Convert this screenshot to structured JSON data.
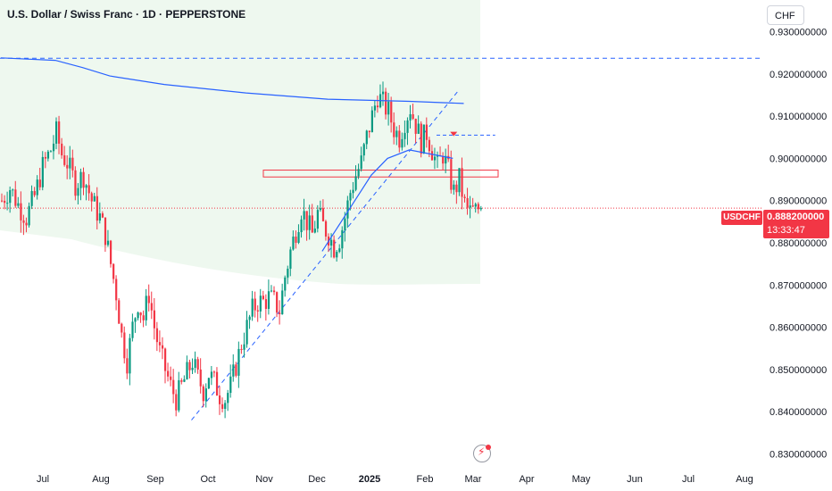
{
  "header": {
    "title": "U.S. Dollar / Swiss Franc · 1D · PEPPERSTONE",
    "currency": "CHF"
  },
  "last_price": {
    "symbol": "USDCHF",
    "price": "0.888200000",
    "countdown": "13:33:47",
    "color": "#f23645"
  },
  "colors": {
    "up": "#089981",
    "down": "#f23645",
    "ma": "#2962ff",
    "band": "#e8f5e9",
    "dashed_line": "#2962ff"
  },
  "icons": {
    "replay": "lightning-icon"
  },
  "chart_data": {
    "type": "candlestick",
    "x_labels": [
      "Jul",
      "Aug",
      "Sep",
      "Oct",
      "Nov",
      "Dec",
      "2025",
      "Feb",
      "Mar",
      "Apr",
      "May",
      "Jun",
      "Jul",
      "Aug"
    ],
    "y_ticks": [
      "0.930000000",
      "0.920000000",
      "0.910000000",
      "0.900000000",
      "0.890000000",
      "0.880000000",
      "0.870000000",
      "0.860000000",
      "0.850000000",
      "0.840000000",
      "0.830000000"
    ],
    "ylim": [
      0.8265,
      0.9375
    ],
    "close_path": [
      [
        0,
        0.89
      ],
      [
        3,
        0.893
      ],
      [
        6,
        0.889
      ],
      [
        9,
        0.886
      ],
      [
        12,
        0.891
      ],
      [
        15,
        0.898
      ],
      [
        18,
        0.902
      ],
      [
        20,
        0.906
      ],
      [
        22,
        0.901
      ],
      [
        24,
        0.899
      ],
      [
        27,
        0.894
      ],
      [
        30,
        0.896
      ],
      [
        33,
        0.89
      ],
      [
        36,
        0.886
      ],
      [
        38,
        0.882
      ],
      [
        40,
        0.875
      ],
      [
        42,
        0.868
      ],
      [
        44,
        0.858
      ],
      [
        46,
        0.852
      ],
      [
        48,
        0.86
      ],
      [
        50,
        0.866
      ],
      [
        52,
        0.862
      ],
      [
        54,
        0.868
      ],
      [
        56,
        0.86
      ],
      [
        58,
        0.854
      ],
      [
        60,
        0.85
      ],
      [
        62,
        0.846
      ],
      [
        64,
        0.843
      ],
      [
        66,
        0.846
      ],
      [
        68,
        0.849
      ],
      [
        70,
        0.852
      ],
      [
        72,
        0.848
      ],
      [
        74,
        0.845
      ],
      [
        76,
        0.849
      ],
      [
        78,
        0.847
      ],
      [
        80,
        0.844
      ],
      [
        82,
        0.843
      ],
      [
        84,
        0.846
      ],
      [
        86,
        0.851
      ],
      [
        88,
        0.856
      ],
      [
        90,
        0.86
      ],
      [
        92,
        0.864
      ],
      [
        94,
        0.866
      ],
      [
        96,
        0.866
      ],
      [
        98,
        0.867
      ],
      [
        100,
        0.866
      ],
      [
        102,
        0.864
      ],
      [
        104,
        0.872
      ],
      [
        106,
        0.878
      ],
      [
        108,
        0.883
      ],
      [
        110,
        0.888
      ],
      [
        112,
        0.885
      ],
      [
        114,
        0.882
      ],
      [
        116,
        0.887
      ],
      [
        118,
        0.884
      ],
      [
        120,
        0.882
      ],
      [
        122,
        0.879
      ],
      [
        124,
        0.881
      ],
      [
        126,
        0.886
      ],
      [
        128,
        0.892
      ],
      [
        130,
        0.896
      ],
      [
        132,
        0.899
      ],
      [
        134,
        0.905
      ],
      [
        136,
        0.91
      ],
      [
        138,
        0.915
      ],
      [
        140,
        0.913
      ],
      [
        142,
        0.911
      ],
      [
        144,
        0.907
      ],
      [
        146,
        0.905
      ],
      [
        148,
        0.909
      ],
      [
        150,
        0.912
      ],
      [
        152,
        0.908
      ],
      [
        154,
        0.904
      ],
      [
        156,
        0.906
      ],
      [
        158,
        0.902
      ],
      [
        160,
        0.898
      ],
      [
        162,
        0.901
      ],
      [
        164,
        0.897
      ],
      [
        166,
        0.892
      ],
      [
        168,
        0.895
      ],
      [
        170,
        0.889
      ]
    ],
    "moving_average_200": [
      [
        0,
        0.9238
      ],
      [
        20,
        0.9232
      ],
      [
        30,
        0.9215
      ],
      [
        40,
        0.9195
      ],
      [
        60,
        0.9175
      ],
      [
        90,
        0.9155
      ],
      [
        120,
        0.914
      ],
      [
        150,
        0.9135
      ],
      [
        170,
        0.913
      ]
    ],
    "moving_average_50": [
      [
        118,
        0.878
      ],
      [
        124,
        0.884
      ],
      [
        130,
        0.89
      ],
      [
        136,
        0.896
      ],
      [
        142,
        0.9
      ],
      [
        150,
        0.902
      ],
      [
        158,
        0.901
      ],
      [
        166,
        0.9
      ]
    ],
    "horizontal_dashed_level": 0.9237,
    "dashed_trendline": [
      [
        70,
        0.838
      ],
      [
        168,
        0.916
      ]
    ],
    "short_dashed_level": [
      [
        160,
        0.9055
      ],
      [
        175,
        0.9055
      ]
    ],
    "resistance_zone": [
      0.8958,
      0.897
    ],
    "current_price": 0.8882
  }
}
